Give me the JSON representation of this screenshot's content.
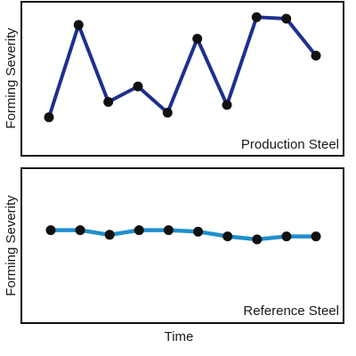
{
  "chart_data": [
    {
      "type": "line",
      "xlabel": "",
      "ylabel": "Forming Severity",
      "ylim": [
        0,
        10
      ],
      "panel_label": "Production Steel",
      "grid": false,
      "series": [
        {
          "color": "#1f2f8f",
          "x": [
            1,
            2,
            3,
            4,
            5,
            6,
            7,
            8,
            9,
            10
          ],
          "y": [
            2.5,
            8.5,
            3.5,
            4.5,
            2.8,
            7.6,
            3.3,
            9.0,
            8.9,
            6.5
          ]
        }
      ]
    },
    {
      "type": "line",
      "xlabel": "Time",
      "ylabel": "Forming Severity",
      "ylim": [
        0,
        10
      ],
      "panel_label": "Reference Steel",
      "grid": false,
      "series": [
        {
          "color": "#1f8fcc",
          "x": [
            1,
            2,
            3,
            4,
            5,
            6,
            7,
            8,
            9,
            10
          ],
          "y": [
            6.0,
            6.0,
            5.7,
            6.0,
            6.0,
            5.9,
            5.6,
            5.4,
            5.6,
            5.6
          ]
        }
      ]
    }
  ]
}
